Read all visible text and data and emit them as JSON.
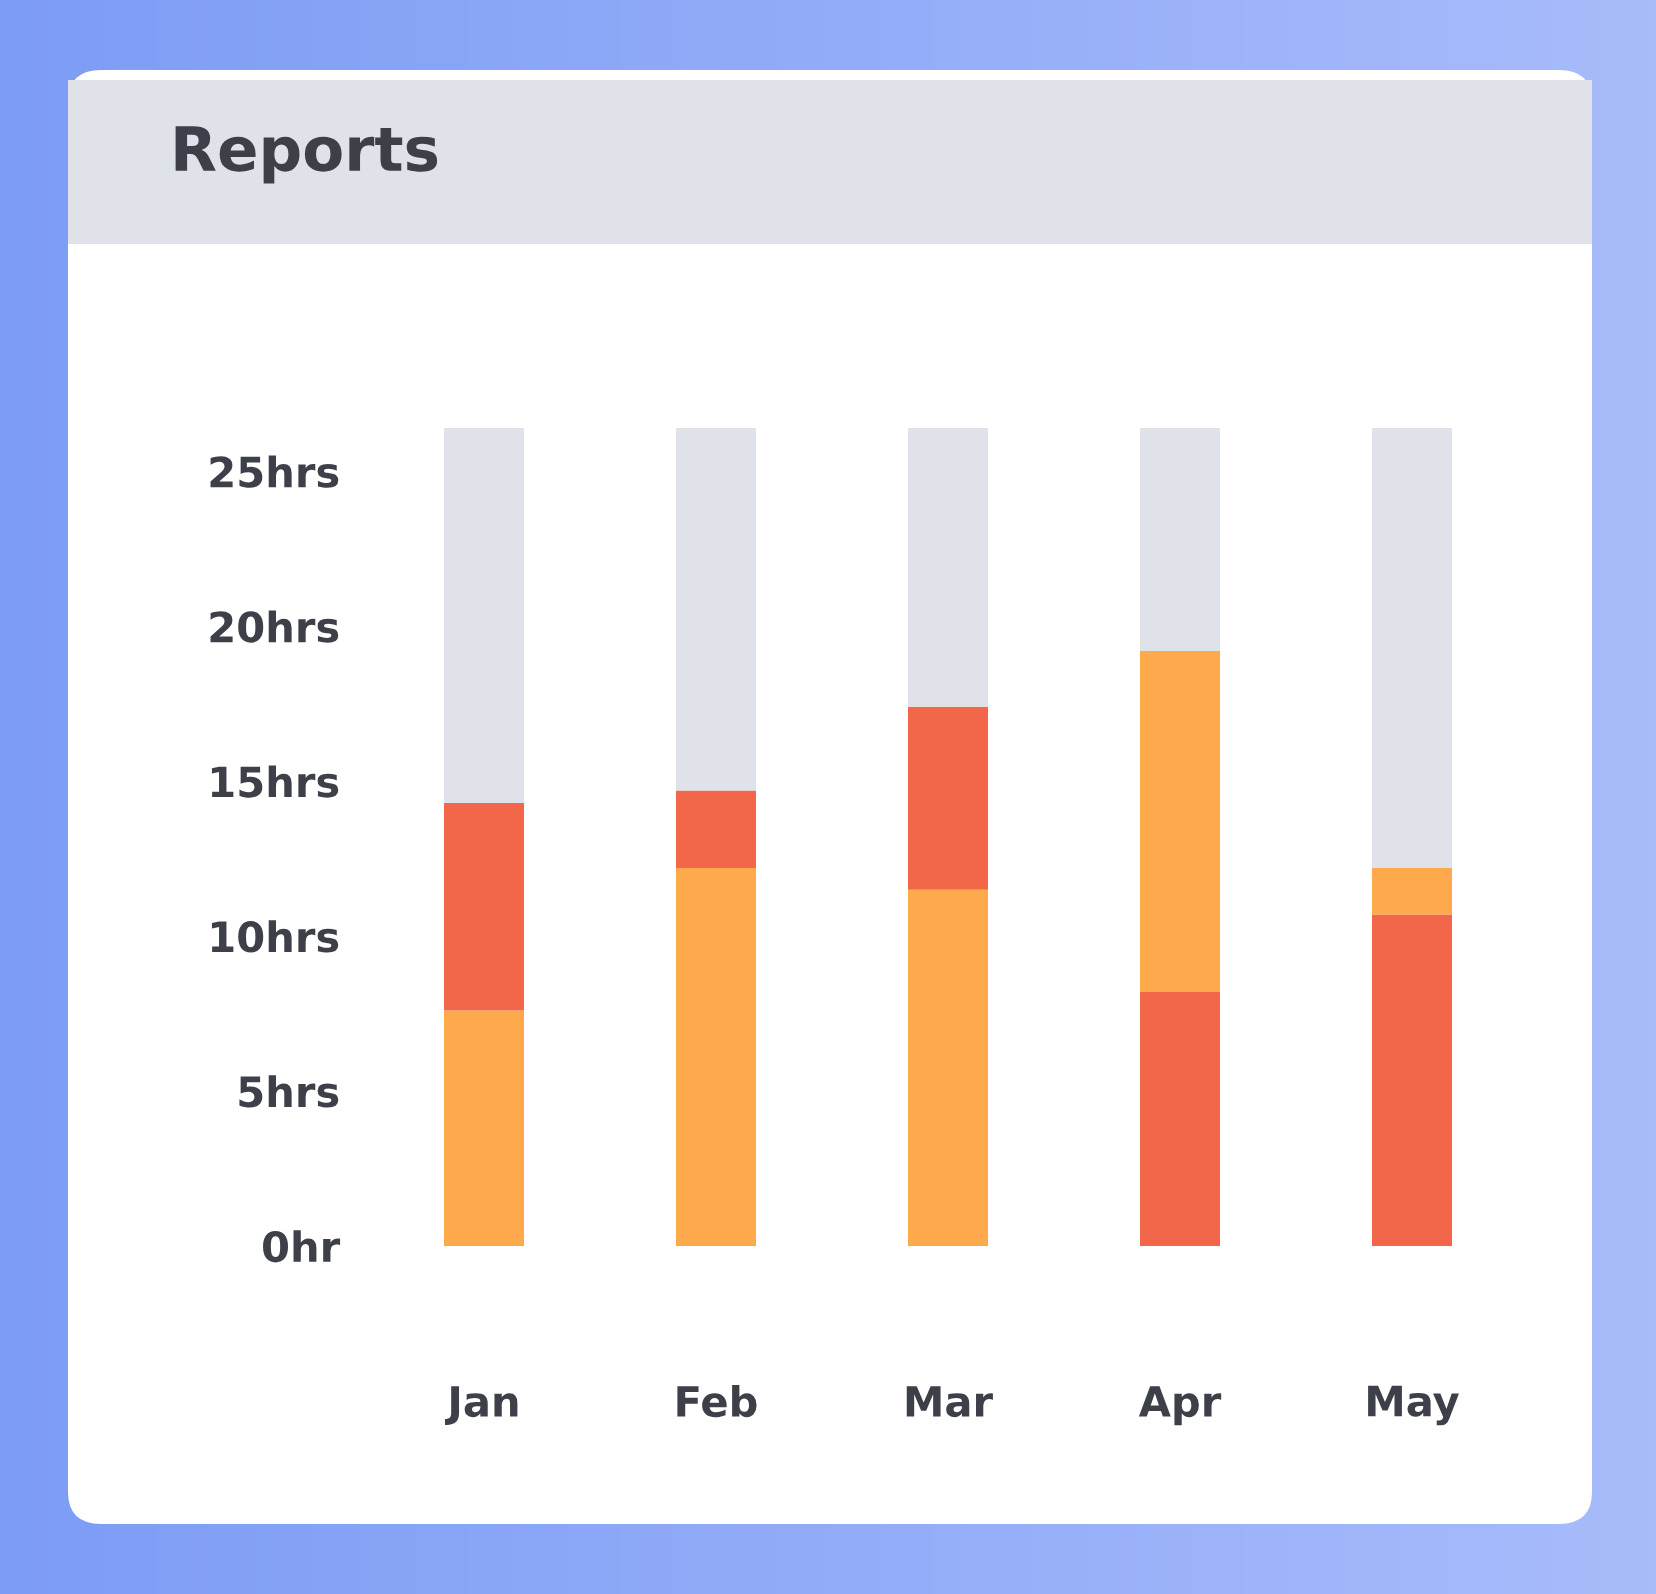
{
  "chart_data": {
    "type": "bar",
    "title": "Reports",
    "stacked": true,
    "categories": [
      "Jan",
      "Feb",
      "Mar",
      "Apr",
      "May"
    ],
    "series": [
      {
        "colors": [
          "#ffa94d",
          "#ffa94d",
          "#ffa94d",
          "#f2674a",
          "#f2674a"
        ],
        "values": [
          7.6,
          12.2,
          11.5,
          8.2,
          10.7
        ]
      },
      {
        "colors": [
          "#f2674a",
          "#f2674a",
          "#f2674a",
          "#ffa94d",
          "#ffa94d"
        ],
        "values": [
          6.7,
          2.5,
          5.9,
          11.0,
          1.5
        ]
      },
      {
        "color": "#dfe2e8",
        "values": [
          12.1,
          11.7,
          9.0,
          7.2,
          14.2
        ]
      }
    ],
    "ylim": [
      0,
      26.4
    ],
    "yticks": [
      {
        "value": 0,
        "label": "0hr"
      },
      {
        "value": 5,
        "label": "5hrs"
      },
      {
        "value": 10,
        "label": "10hrs"
      },
      {
        "value": 15,
        "label": "15hrs"
      },
      {
        "value": 20,
        "label": "20hrs"
      },
      {
        "value": 25,
        "label": "25hrs"
      }
    ],
    "grid": false,
    "legend": false
  }
}
